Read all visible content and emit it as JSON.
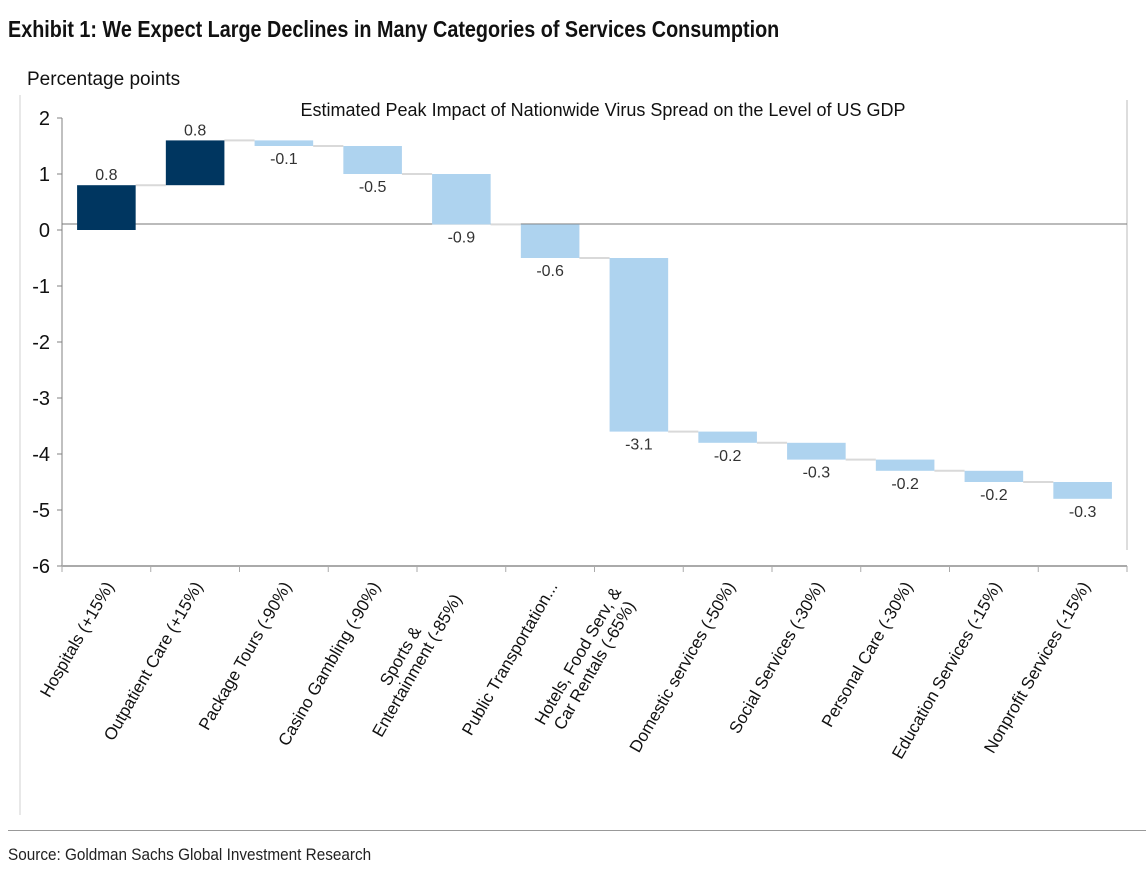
{
  "exhibit_title": "Exhibit 1: We Expect Large Declines in Many Categories of Services Consumption",
  "source": "Source: Goldman Sachs Global Investment Research",
  "chart_data": {
    "type": "waterfall",
    "title": "Estimated Peak Impact of Nationwide Virus Spread on the Level of US GDP",
    "ylabel": "Percentage points",
    "xlabel": "",
    "ylim": [
      -6,
      2
    ],
    "yticks": [
      2,
      1,
      0,
      -1,
      -2,
      -3,
      -4,
      -5,
      -6
    ],
    "grid": false,
    "categories": [
      [
        "Hospitals (+15%)"
      ],
      [
        "Outpatient Care (+15%)"
      ],
      [
        "Package Tours (-90%)"
      ],
      [
        "Casino Gambling (-90%)"
      ],
      [
        "Sports &",
        "Entertainment (-85%)"
      ],
      [
        "Public Transportation..."
      ],
      [
        "Hotels, Food Serv, &",
        "Car Rentals (-65%)"
      ],
      [
        "Domestic services (-50%)"
      ],
      [
        "Social Services (-30%)"
      ],
      [
        "Personal Care (-30%)"
      ],
      [
        "Education Services  (-15%)"
      ],
      [
        "Nonprofit Services  (-15%)"
      ]
    ],
    "values": [
      0.8,
      0.8,
      -0.1,
      -0.5,
      -0.9,
      -0.6,
      -3.1,
      -0.2,
      -0.3,
      -0.2,
      -0.2,
      -0.3
    ],
    "colors": {
      "positive": "#003660",
      "negative": "#aed3ef",
      "connector": "#d9d9d9",
      "axis": "#808080"
    }
  }
}
